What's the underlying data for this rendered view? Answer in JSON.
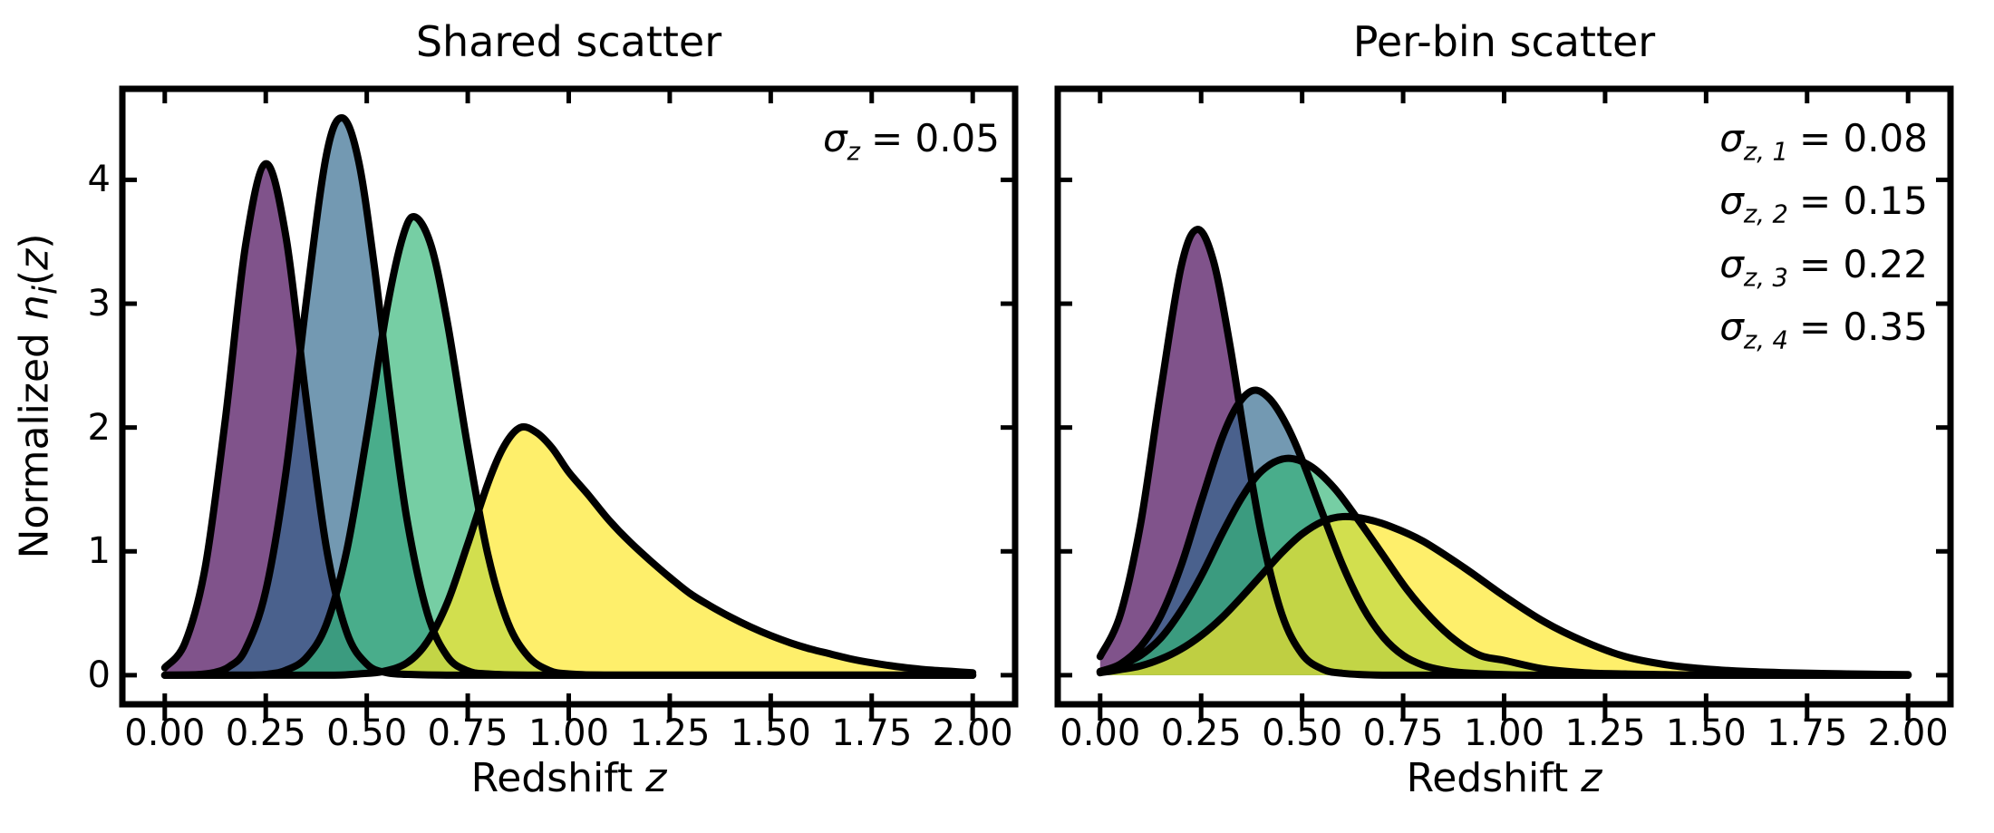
{
  "figure": {
    "background": "#ffffff",
    "text_color": "#000000",
    "curve_outline_color": "#000000",
    "fill_opacity": 0.68
  },
  "labels": {
    "ylabel_prefix": "Normalized ",
    "ylabel_var": "n",
    "ylabel_sub": "i",
    "ylabel_open": "(",
    "ylabel_arg": "z",
    "ylabel_close": ")",
    "xlabel_prefix": "Redshift ",
    "xlabel_var": "z"
  },
  "chart_data": [
    {
      "type": "area",
      "panel": "left",
      "title": "Shared scatter",
      "xlabel": "Redshift z",
      "ylabel": "Normalized n_i(z)",
      "xlim": [
        -0.105,
        2.105
      ],
      "ylim": [
        -0.235,
        4.735
      ],
      "grid": false,
      "legend": false,
      "show_ytick_labels": true,
      "xticks": {
        "values": [
          0,
          0.25,
          0.5,
          0.75,
          1.0,
          1.25,
          1.5,
          1.75,
          2.0
        ],
        "labels": [
          "0.00",
          "0.25",
          "0.50",
          "0.75",
          "1.00",
          "1.25",
          "1.50",
          "1.75",
          "2.00"
        ]
      },
      "yticks": {
        "values": [
          0,
          1,
          2,
          3,
          4
        ],
        "labels": [
          "0",
          "1",
          "2",
          "3",
          "4"
        ]
      },
      "annotations": [
        {
          "var": "σ",
          "sub": "z",
          "value": "= 0.05"
        }
      ],
      "series": [
        {
          "name": "bin-1",
          "color": "#440154",
          "peak_z": 0.25,
          "peak_y": 4.13,
          "points": [
            [
              0.0,
              0.06
            ],
            [
              0.05,
              0.26
            ],
            [
              0.1,
              0.87
            ],
            [
              0.15,
              2.07
            ],
            [
              0.2,
              3.47
            ],
            [
              0.25,
              4.13
            ],
            [
              0.3,
              3.54
            ],
            [
              0.35,
              2.23
            ],
            [
              0.4,
              1.03
            ],
            [
              0.45,
              0.35
            ],
            [
              0.5,
              0.09
            ],
            [
              0.55,
              0.02
            ],
            [
              0.62,
              0.005
            ],
            [
              0.75,
              0
            ],
            [
              1.0,
              0
            ],
            [
              1.25,
              0
            ],
            [
              1.5,
              0
            ],
            [
              1.75,
              0
            ],
            [
              2.0,
              0
            ]
          ]
        },
        {
          "name": "bin-2",
          "color": "#31688e",
          "peak_z": 0.44,
          "peak_y": 4.5,
          "points": [
            [
              0.0,
              0
            ],
            [
              0.08,
              0.005
            ],
            [
              0.12,
              0.02
            ],
            [
              0.16,
              0.07
            ],
            [
              0.2,
              0.21
            ],
            [
              0.25,
              0.68
            ],
            [
              0.3,
              1.64
            ],
            [
              0.35,
              3.01
            ],
            [
              0.4,
              4.2
            ],
            [
              0.44,
              4.5
            ],
            [
              0.48,
              4.15
            ],
            [
              0.52,
              3.27
            ],
            [
              0.56,
              2.19
            ],
            [
              0.6,
              1.25
            ],
            [
              0.65,
              0.5
            ],
            [
              0.7,
              0.15
            ],
            [
              0.75,
              0.035
            ],
            [
              0.8,
              0.01
            ],
            [
              0.9,
              0
            ],
            [
              1.0,
              0
            ],
            [
              1.25,
              0
            ],
            [
              1.5,
              0
            ],
            [
              1.75,
              0
            ],
            [
              2.0,
              0
            ]
          ]
        },
        {
          "name": "bin-3",
          "color": "#35b779",
          "peak_z": 0.62,
          "peak_y": 3.7,
          "points": [
            [
              0.0,
              0
            ],
            [
              0.2,
              0
            ],
            [
              0.26,
              0.01
            ],
            [
              0.3,
              0.04
            ],
            [
              0.35,
              0.14
            ],
            [
              0.4,
              0.41
            ],
            [
              0.45,
              1.0
            ],
            [
              0.5,
              1.93
            ],
            [
              0.55,
              2.96
            ],
            [
              0.59,
              3.55
            ],
            [
              0.62,
              3.7
            ],
            [
              0.66,
              3.46
            ],
            [
              0.7,
              2.84
            ],
            [
              0.75,
              1.84
            ],
            [
              0.8,
              0.97
            ],
            [
              0.85,
              0.42
            ],
            [
              0.9,
              0.15
            ],
            [
              0.95,
              0.04
            ],
            [
              1.0,
              0.01
            ],
            [
              1.1,
              0
            ],
            [
              1.25,
              0
            ],
            [
              1.5,
              0
            ],
            [
              1.75,
              0
            ],
            [
              2.0,
              0
            ]
          ]
        },
        {
          "name": "bin-4",
          "color": "#fde725",
          "peak_z": 0.88,
          "peak_y": 2.0,
          "points": [
            [
              0.0,
              0
            ],
            [
              0.3,
              0
            ],
            [
              0.42,
              0
            ],
            [
              0.48,
              0.01
            ],
            [
              0.54,
              0.03
            ],
            [
              0.6,
              0.1
            ],
            [
              0.65,
              0.27
            ],
            [
              0.7,
              0.59
            ],
            [
              0.75,
              1.06
            ],
            [
              0.8,
              1.55
            ],
            [
              0.84,
              1.85
            ],
            [
              0.88,
              2.0
            ],
            [
              0.92,
              1.96
            ],
            [
              0.96,
              1.83
            ],
            [
              1.0,
              1.64
            ],
            [
              1.05,
              1.45
            ],
            [
              1.1,
              1.25
            ],
            [
              1.15,
              1.08
            ],
            [
              1.2,
              0.93
            ],
            [
              1.25,
              0.79
            ],
            [
              1.3,
              0.66
            ],
            [
              1.35,
              0.56
            ],
            [
              1.4,
              0.47
            ],
            [
              1.45,
              0.39
            ],
            [
              1.5,
              0.32
            ],
            [
              1.55,
              0.26
            ],
            [
              1.6,
              0.21
            ],
            [
              1.65,
              0.17
            ],
            [
              1.7,
              0.13
            ],
            [
              1.75,
              0.1
            ],
            [
              1.8,
              0.075
            ],
            [
              1.85,
              0.055
            ],
            [
              1.9,
              0.04
            ],
            [
              1.95,
              0.03
            ],
            [
              2.0,
              0.02
            ]
          ]
        }
      ]
    },
    {
      "type": "area",
      "panel": "right",
      "title": "Per-bin scatter",
      "xlabel": "Redshift z",
      "ylabel": "Normalized n_i(z)",
      "xlim": [
        -0.105,
        2.105
      ],
      "ylim": [
        -0.235,
        4.735
      ],
      "grid": false,
      "legend": false,
      "show_ytick_labels": false,
      "xticks": {
        "values": [
          0,
          0.25,
          0.5,
          0.75,
          1.0,
          1.25,
          1.5,
          1.75,
          2.0
        ],
        "labels": [
          "0.00",
          "0.25",
          "0.50",
          "0.75",
          "1.00",
          "1.25",
          "1.50",
          "1.75",
          "2.00"
        ]
      },
      "yticks": {
        "values": [
          0,
          1,
          2,
          3,
          4
        ],
        "labels": [
          "0",
          "1",
          "2",
          "3",
          "4"
        ]
      },
      "annotations": [
        {
          "var": "σ",
          "sub": "z, 1",
          "value": "= 0.08"
        },
        {
          "var": "σ",
          "sub": "z, 2",
          "value": "= 0.15"
        },
        {
          "var": "σ",
          "sub": "z, 3",
          "value": "= 0.22"
        },
        {
          "var": "σ",
          "sub": "z, 4",
          "value": "= 0.35"
        }
      ],
      "series": [
        {
          "name": "bin-1",
          "color": "#440154",
          "peak_z": 0.24,
          "peak_y": 3.6,
          "points": [
            [
              0.0,
              0.15
            ],
            [
              0.05,
              0.49
            ],
            [
              0.1,
              1.22
            ],
            [
              0.15,
              2.3
            ],
            [
              0.2,
              3.29
            ],
            [
              0.24,
              3.6
            ],
            [
              0.28,
              3.35
            ],
            [
              0.32,
              2.69
            ],
            [
              0.36,
              1.87
            ],
            [
              0.4,
              1.13
            ],
            [
              0.45,
              0.49
            ],
            [
              0.5,
              0.17
            ],
            [
              0.55,
              0.05
            ],
            [
              0.6,
              0.015
            ],
            [
              0.7,
              0
            ],
            [
              0.85,
              0
            ],
            [
              1.0,
              0
            ],
            [
              1.25,
              0
            ],
            [
              1.5,
              0
            ],
            [
              1.75,
              0
            ],
            [
              2.0,
              0
            ]
          ]
        },
        {
          "name": "bin-2",
          "color": "#31688e",
          "peak_z": 0.38,
          "peak_y": 2.3,
          "points": [
            [
              0.0,
              0.03
            ],
            [
              0.05,
              0.09
            ],
            [
              0.1,
              0.23
            ],
            [
              0.15,
              0.48
            ],
            [
              0.2,
              0.88
            ],
            [
              0.25,
              1.4
            ],
            [
              0.3,
              1.9
            ],
            [
              0.34,
              2.18
            ],
            [
              0.38,
              2.3
            ],
            [
              0.42,
              2.23
            ],
            [
              0.46,
              2.03
            ],
            [
              0.5,
              1.74
            ],
            [
              0.55,
              1.31
            ],
            [
              0.6,
              0.89
            ],
            [
              0.65,
              0.55
            ],
            [
              0.7,
              0.31
            ],
            [
              0.75,
              0.16
            ],
            [
              0.8,
              0.08
            ],
            [
              0.85,
              0.04
            ],
            [
              0.9,
              0.02
            ],
            [
              1.0,
              0.005
            ],
            [
              1.1,
              0
            ],
            [
              1.25,
              0
            ],
            [
              1.5,
              0
            ],
            [
              1.75,
              0
            ],
            [
              2.0,
              0
            ]
          ]
        },
        {
          "name": "bin-3",
          "color": "#35b779",
          "peak_z": 0.46,
          "peak_y": 1.75,
          "points": [
            [
              0.0,
              0.03
            ],
            [
              0.05,
              0.08
            ],
            [
              0.1,
              0.16
            ],
            [
              0.15,
              0.3
            ],
            [
              0.2,
              0.52
            ],
            [
              0.25,
              0.8
            ],
            [
              0.3,
              1.13
            ],
            [
              0.35,
              1.43
            ],
            [
              0.4,
              1.65
            ],
            [
              0.46,
              1.75
            ],
            [
              0.52,
              1.69
            ],
            [
              0.58,
              1.51
            ],
            [
              0.64,
              1.25
            ],
            [
              0.7,
              0.97
            ],
            [
              0.76,
              0.69
            ],
            [
              0.82,
              0.46
            ],
            [
              0.88,
              0.28
            ],
            [
              0.94,
              0.16
            ],
            [
              1.0,
              0.12
            ],
            [
              1.1,
              0.05
            ],
            [
              1.2,
              0.02
            ],
            [
              1.3,
              0.01
            ],
            [
              1.4,
              0.005
            ],
            [
              1.5,
              0
            ],
            [
              1.75,
              0
            ],
            [
              2.0,
              0
            ]
          ]
        },
        {
          "name": "bin-4",
          "color": "#fde725",
          "peak_z": 0.6,
          "peak_y": 1.28,
          "points": [
            [
              0.0,
              0.02
            ],
            [
              0.05,
              0.045
            ],
            [
              0.1,
              0.075
            ],
            [
              0.15,
              0.13
            ],
            [
              0.2,
              0.21
            ],
            [
              0.25,
              0.32
            ],
            [
              0.3,
              0.46
            ],
            [
              0.35,
              0.63
            ],
            [
              0.4,
              0.81
            ],
            [
              0.45,
              0.99
            ],
            [
              0.5,
              1.14
            ],
            [
              0.55,
              1.24
            ],
            [
              0.6,
              1.28
            ],
            [
              0.66,
              1.26
            ],
            [
              0.72,
              1.2
            ],
            [
              0.8,
              1.08
            ],
            [
              0.9,
              0.87
            ],
            [
              1.0,
              0.64
            ],
            [
              1.1,
              0.43
            ],
            [
              1.2,
              0.27
            ],
            [
              1.3,
              0.15
            ],
            [
              1.4,
              0.085
            ],
            [
              1.5,
              0.05
            ],
            [
              1.6,
              0.03
            ],
            [
              1.7,
              0.02
            ],
            [
              1.8,
              0.013
            ],
            [
              1.9,
              0.008
            ],
            [
              2.0,
              0.005
            ]
          ]
        }
      ]
    }
  ]
}
